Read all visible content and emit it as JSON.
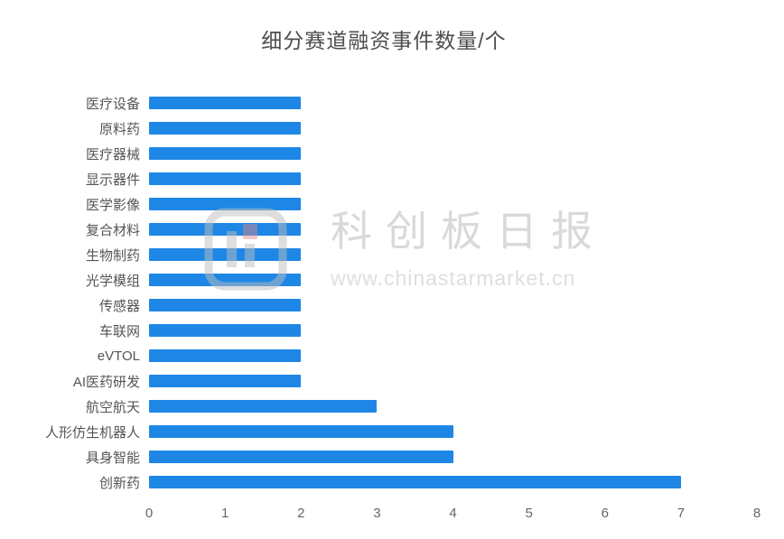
{
  "chart_data": {
    "type": "bar",
    "orientation": "horizontal",
    "title": "细分赛道融资事件数量/个",
    "categories": [
      "医疗设备",
      "原料药",
      "医疗器械",
      "显示器件",
      "医学影像",
      "复合材料",
      "生物制药",
      "光学模组",
      "传感器",
      "车联网",
      "eVTOL",
      "AI医药研发",
      "航空航天",
      "人形仿生机器人",
      "具身智能",
      "创新药"
    ],
    "values": [
      2,
      2,
      2,
      2,
      2,
      2,
      2,
      2,
      2,
      2,
      2,
      2,
      3,
      4,
      4,
      7
    ],
    "xlabel": "",
    "ylabel": "",
    "xlim": [
      0,
      8
    ],
    "x_ticks": [
      0,
      1,
      2,
      3,
      4,
      5,
      6,
      7,
      8
    ],
    "bar_color": "#1E87E5",
    "grid": false,
    "legend": false
  },
  "watermark": {
    "brand": "科创板日报",
    "url": "www.chinastarmarket.cn"
  }
}
